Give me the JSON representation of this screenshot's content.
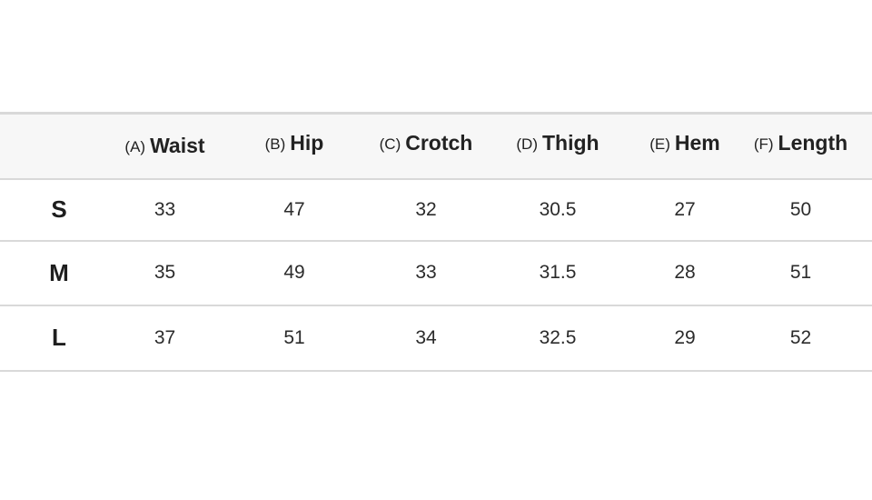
{
  "columns": [
    {
      "letter": "(A)",
      "name": "Waist"
    },
    {
      "letter": "(B)",
      "name": "Hip"
    },
    {
      "letter": "(C)",
      "name": "Crotch"
    },
    {
      "letter": "(D)",
      "name": "Thigh"
    },
    {
      "letter": "(E)",
      "name": "Hem"
    },
    {
      "letter": "(F)",
      "name": "Length"
    }
  ],
  "rows": [
    {
      "size": "S",
      "values": [
        "33",
        "47",
        "32",
        "30.5",
        "27",
        "50"
      ]
    },
    {
      "size": "M",
      "values": [
        "35",
        "49",
        "33",
        "31.5",
        "28",
        "51"
      ]
    },
    {
      "size": "L",
      "values": [
        "37",
        "51",
        "34",
        "32.5",
        "29",
        "52"
      ]
    }
  ]
}
